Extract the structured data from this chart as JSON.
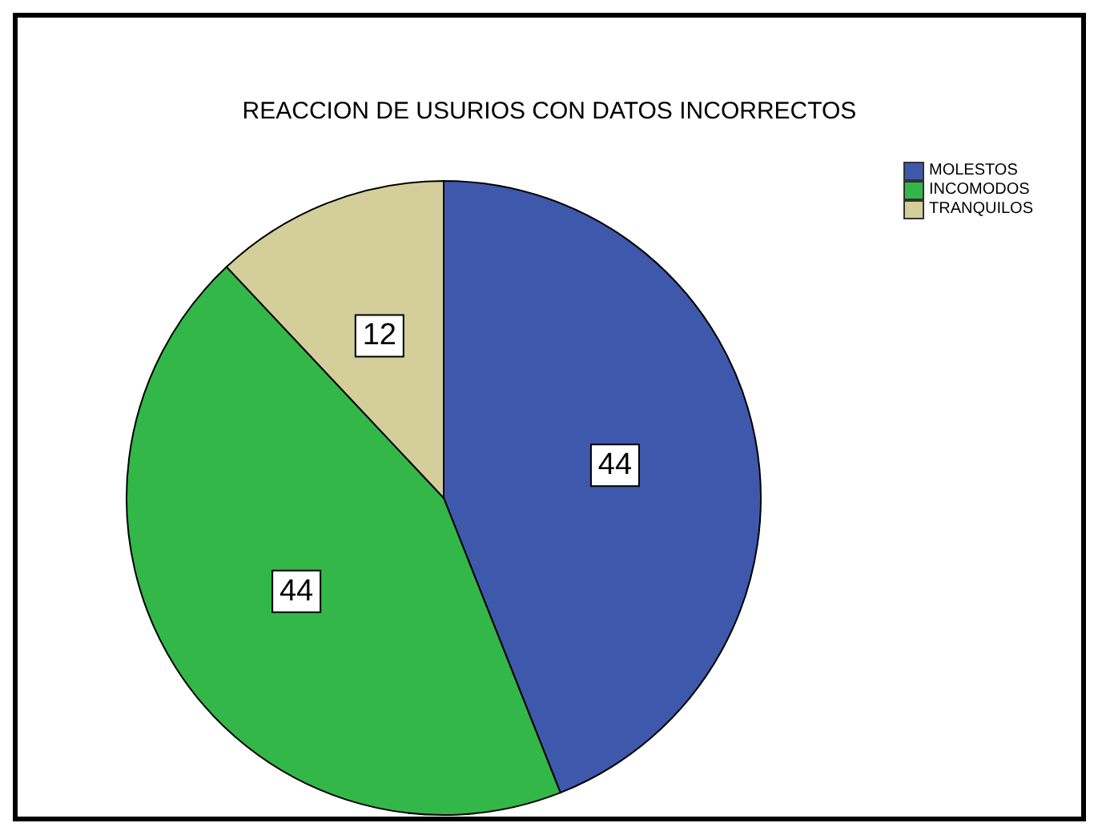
{
  "chart_data": {
    "type": "pie",
    "title": "REACCION DE USURIOS CON DATOS INCORRECTOS",
    "categories": [
      "MOLESTOS",
      "INCOMODOS",
      "TRANQUILOS"
    ],
    "values": [
      44,
      44,
      12
    ],
    "colors": [
      "#3e58ac",
      "#33b748",
      "#d4cf9a"
    ],
    "data_labels": true,
    "legend": "top right"
  }
}
